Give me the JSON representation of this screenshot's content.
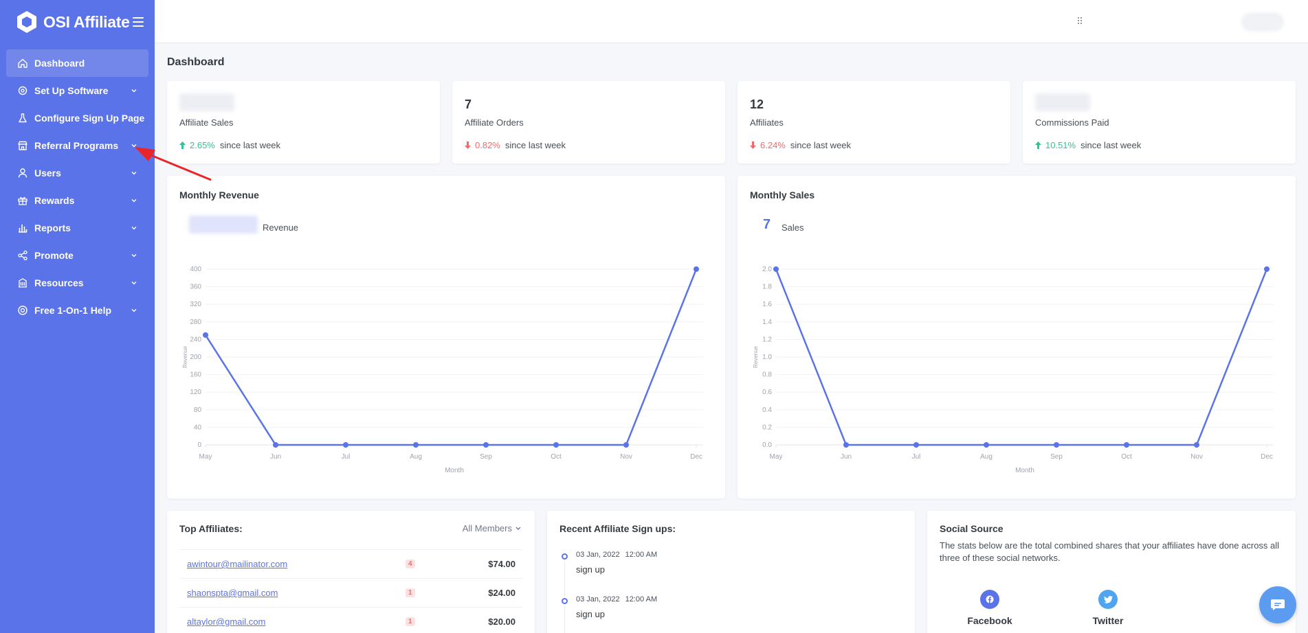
{
  "brand": {
    "name": "OSI Affiliate"
  },
  "sidebar": {
    "items": [
      {
        "label": "Dashboard",
        "icon": "home-icon",
        "active": true,
        "chevron": false
      },
      {
        "label": "Set Up Software",
        "icon": "gear-icon",
        "chevron": true
      },
      {
        "label": "Configure Sign Up Page",
        "icon": "flask-icon",
        "chevron": false
      },
      {
        "label": "Referral Programs",
        "icon": "store-icon",
        "chevron": true
      },
      {
        "label": "Users",
        "icon": "user-icon",
        "chevron": true
      },
      {
        "label": "Rewards",
        "icon": "gift-icon",
        "chevron": true
      },
      {
        "label": "Reports",
        "icon": "bar-chart-icon",
        "chevron": true
      },
      {
        "label": "Promote",
        "icon": "share-icon",
        "chevron": true
      },
      {
        "label": "Resources",
        "icon": "building-icon",
        "chevron": true
      },
      {
        "label": "Free 1-On-1 Help",
        "icon": "lifebuoy-icon",
        "chevron": true
      }
    ]
  },
  "page": {
    "title": "Dashboard"
  },
  "stats": [
    {
      "value": "",
      "label": "Affiliate Sales",
      "pct": "2.65%",
      "dir": "up",
      "since": "since last week"
    },
    {
      "value": "7",
      "label": "Affiliate Orders",
      "pct": "0.82%",
      "dir": "down",
      "since": "since last week"
    },
    {
      "value": "12",
      "label": "Affiliates",
      "pct": "6.24%",
      "dir": "down",
      "since": "since last week"
    },
    {
      "value": "",
      "label": "Commissions Paid",
      "pct": "10.51%",
      "dir": "up",
      "since": "since last week"
    }
  ],
  "colors": {
    "accent": "#5b73e8",
    "up": "#34c38f",
    "down": "#f46a6a"
  },
  "chart_data": [
    {
      "type": "line",
      "title": "Monthly Revenue",
      "summary_value": "",
      "summary_label": "Revenue",
      "xlabel": "Month",
      "ylabel": "Revenue",
      "categories": [
        "May",
        "Jun",
        "Jul",
        "Aug",
        "Sep",
        "Oct",
        "Nov",
        "Dec"
      ],
      "values": [
        250,
        0,
        0,
        0,
        0,
        0,
        0,
        400
      ],
      "ylim": [
        0,
        400
      ],
      "yticks": [
        "0",
        "40",
        "80",
        "120",
        "160",
        "200",
        "240",
        "280",
        "320",
        "360",
        "400"
      ],
      "grid": true
    },
    {
      "type": "line",
      "title": "Monthly Sales",
      "summary_value": "7",
      "summary_label": "Sales",
      "xlabel": "Month",
      "ylabel": "Revenue",
      "categories": [
        "May",
        "Jun",
        "Jul",
        "Aug",
        "Sep",
        "Oct",
        "Nov",
        "Dec"
      ],
      "values": [
        2.0,
        0,
        0,
        0,
        0,
        0,
        0,
        2.0
      ],
      "ylim": [
        0,
        2.0
      ],
      "yticks": [
        "0.0",
        "0.2",
        "0.4",
        "0.6",
        "0.8",
        "1.0",
        "1.2",
        "1.4",
        "1.6",
        "1.8",
        "2.0"
      ],
      "grid": true
    }
  ],
  "top_affiliates": {
    "title": "Top Affiliates:",
    "filter": "All Members",
    "rows": [
      {
        "email": "awintour@mailinator.com",
        "count": "4",
        "amount": "$74.00"
      },
      {
        "email": "shaonspta@gmail.com",
        "count": "1",
        "amount": "$24.00"
      },
      {
        "email": "altaylor@gmail.com",
        "count": "1",
        "amount": "$20.00"
      }
    ]
  },
  "signups": {
    "title": "Recent Affiliate Sign ups:",
    "items": [
      {
        "date": "03 Jan, 2022",
        "time": "12:00 AM",
        "text": "sign up"
      },
      {
        "date": "03 Jan, 2022",
        "time": "12:00 AM",
        "text": "sign up"
      }
    ]
  },
  "social": {
    "title": "Social Source",
    "description": "The stats below are the total combined shares that your affiliates have done across all three of these social networks.",
    "networks": [
      {
        "name": "Facebook",
        "icon": "facebook-icon",
        "color": "#5b73e8"
      },
      {
        "name": "Twitter",
        "icon": "twitter-icon",
        "color": "#50a5f1"
      }
    ]
  }
}
